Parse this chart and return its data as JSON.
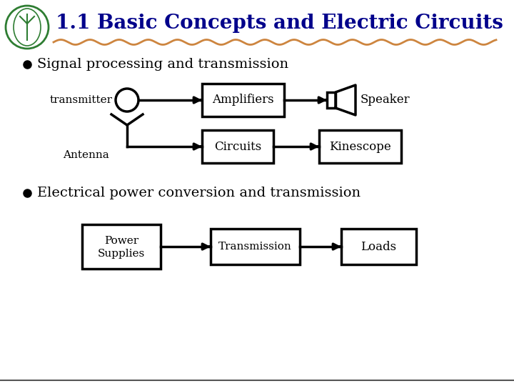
{
  "title": "1.1 Basic Concepts and Electric Circuits",
  "title_color": "#00008B",
  "title_fontsize": 20,
  "bg_color": "#FFFFFF",
  "wavy_color": "#CD853F",
  "bullet1": "Signal processing and transmission",
  "bullet2": "Electrical power conversion and transmission",
  "bullet_fontsize": 14,
  "diagram_lw": 2.5,
  "logo_green": "#2E7D32"
}
